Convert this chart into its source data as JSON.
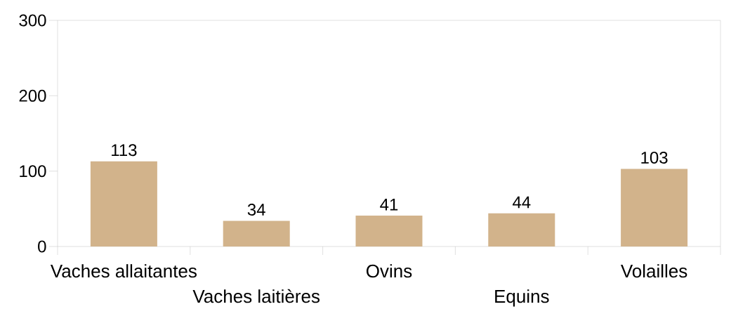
{
  "chart_data": {
    "type": "bar",
    "categories": [
      "Vaches allaitantes",
      "Vaches laitières",
      "Ovins",
      "Equins",
      "Volailles"
    ],
    "values": [
      113,
      34,
      41,
      44,
      103
    ],
    "color": "#d2b38b",
    "ylim": [
      0,
      300
    ],
    "yticks": [
      0,
      100,
      200,
      300
    ],
    "data_labels": true,
    "grid": false
  }
}
